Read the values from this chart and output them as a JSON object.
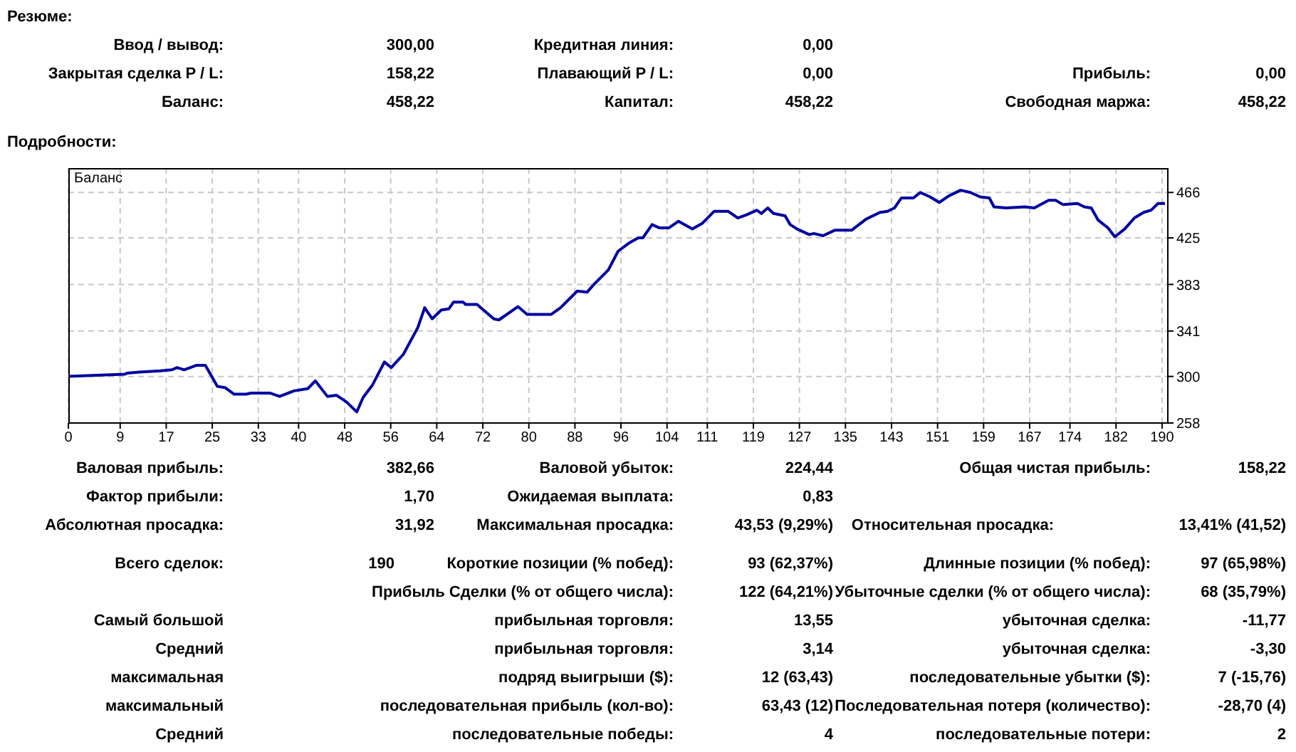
{
  "chart_data": {
    "type": "line",
    "legend": "top left",
    "grid": true,
    "marker": "none",
    "line_style": "solid",
    "xlim": [
      0,
      191
    ],
    "ylim": [
      258,
      488
    ],
    "xticks": [
      0,
      9,
      17,
      25,
      33,
      40,
      48,
      56,
      64,
      72,
      80,
      88,
      96,
      104,
      111,
      119,
      127,
      135,
      143,
      151,
      159,
      167,
      174,
      182,
      190
    ],
    "yticks": [
      258,
      300,
      341,
      383,
      425,
      466
    ],
    "series": [
      {
        "name": "Баланс",
        "color": "#0000a0",
        "x": [
          0,
          4.8,
          9.8,
          10.2,
          12.3,
          16,
          18,
          18.9,
          20.1,
          22.2,
          23.8,
          25.9,
          27.2,
          28.8,
          30.9,
          31.7,
          35,
          36.7,
          39.2,
          41.6,
          42.9,
          45,
          46.6,
          48.3,
          50.1,
          51.2,
          52.8,
          54.9,
          56.1,
          58.2,
          60.7,
          61.9,
          63.2,
          64.8,
          66.1,
          66.9,
          68.6,
          69,
          71,
          73.9,
          74.8,
          78.1,
          79.7,
          83.9,
          85.5,
          88.4,
          90.1,
          91.3,
          93.8,
          95.5,
          97.3,
          99,
          99.8,
          101.4,
          102.7,
          104.3,
          106,
          108.4,
          110.1,
          112.2,
          113,
          114.6,
          116.3,
          117.9,
          119.6,
          120.4,
          121.5,
          122.5,
          124.5,
          125.4,
          126.6,
          128.7,
          129.5,
          131.1,
          133.2,
          136.1,
          138.6,
          141,
          142.3,
          143.5,
          144.7,
          146.8,
          148,
          149.7,
          151.3,
          153,
          155,
          156.7,
          158.4,
          160,
          160.8,
          162.9,
          166.2,
          167.8,
          170.3,
          171.5,
          172.8,
          175.3,
          176.5,
          177.7,
          178.9,
          180.6,
          181.8,
          183.5,
          185.2,
          186.8,
          188.1,
          189.3,
          190.5
        ],
        "values": [
          300,
          301,
          302,
          303,
          304,
          305,
          306,
          308,
          306,
          310,
          310,
          291,
          290,
          284,
          284,
          285,
          285,
          282,
          287,
          289,
          296,
          282,
          283,
          277,
          268,
          281,
          292,
          313,
          308,
          320,
          344,
          362,
          352,
          360,
          361,
          367,
          367,
          365,
          365,
          352,
          351,
          363,
          356,
          356,
          362,
          377,
          376,
          383,
          396,
          413,
          420,
          425,
          425,
          437,
          434,
          434,
          440,
          433,
          438,
          449,
          449,
          449,
          443,
          446,
          450,
          447,
          452,
          447,
          445,
          437,
          433,
          428,
          429,
          427,
          432,
          432,
          442,
          448,
          449,
          452,
          461,
          461,
          466,
          462,
          457,
          463,
          468,
          466,
          462,
          461,
          453,
          452,
          453,
          452,
          459,
          459,
          455,
          456,
          453,
          452,
          441,
          434,
          426,
          433,
          443,
          448,
          450,
          456,
          456
        ]
      }
    ],
    "annotations": [
      "Резюме:",
      "Ввод / вывод:",
      "300,00",
      "Кредитная линия:",
      "0,00",
      "Закрытая сделка P / L:",
      "158,22",
      "Плавающий P / L:",
      "0,00",
      "Прибыль:",
      "0,00",
      "Баланс:",
      "458,22",
      "Капитал:",
      "458,22",
      "Свободная маржа:",
      "458,22",
      "Подробности:",
      "Валовая прибыль:",
      "382,66",
      "Валовой убыток:",
      "224,44",
      "Общая чистая прибыль:",
      "158,22",
      "Фактор прибыли:",
      "1,70",
      "Ожидаемая выплата:",
      "0,83",
      "Абсолютная просадка:",
      "31,92",
      "Максимальная просадка:",
      "43,53 (9,29%)",
      "Относительная просадка:",
      "13,41% (41,52)",
      "Всего сделок:",
      "190",
      "Короткие позиции (% побед):",
      "93 (62,37%)",
      "Длинные позиции (% побед):",
      "97 (65,98%)",
      "Прибыль Сделки (% от общего числа):",
      "122 (64,21%)",
      "Убыточные сделки (% от общего числа):",
      "68 (35,79%)",
      "Самый большой",
      "прибыльная торговля:",
      "13,55",
      "убыточная сделка:",
      "-11,77",
      "Средний",
      "прибыльная торговля:",
      "3,14",
      "убыточная сделка:",
      "-3,30",
      "максимальная",
      "подряд выигрыши ($):",
      "12 (63,43)",
      "последовательные убытки ($):",
      "7 (-15,76)",
      "максимальный",
      "последовательная прибыль (кол-во):",
      "63,43 (12)",
      "Последовательная потеря (количество):",
      "-28,70 (4)",
      "Средний",
      "последовательные победы:",
      "4",
      "последовательные потери:",
      "2"
    ]
  }
}
